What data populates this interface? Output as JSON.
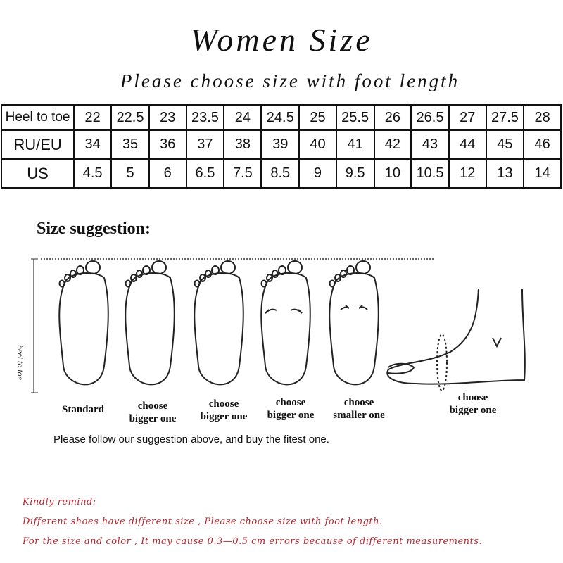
{
  "title": "Women Size",
  "subtitle": "Please choose size with foot length",
  "size_table": {
    "rows": [
      {
        "label": "Heel to toe",
        "values": [
          "22",
          "22.5",
          "23",
          "23.5",
          "24",
          "24.5",
          "25",
          "25.5",
          "26",
          "26.5",
          "27",
          "27.5",
          "28"
        ]
      },
      {
        "label": "RU/EU",
        "values": [
          "34",
          "35",
          "36",
          "37",
          "38",
          "39",
          "40",
          "41",
          "42",
          "43",
          "44",
          "45",
          "46"
        ]
      },
      {
        "label": "US",
        "values": [
          "4.5",
          "5",
          "6",
          "6.5",
          "7.5",
          "8.5",
          "9",
          "9.5",
          "10",
          "10.5",
          "12",
          "13",
          "14"
        ]
      }
    ]
  },
  "suggestion": {
    "heading": "Size suggestion:",
    "axis_label": "heel to toe",
    "feet": [
      {
        "line1": "Standard",
        "line2": ""
      },
      {
        "line1": "choose",
        "line2": "bigger one"
      },
      {
        "line1": "choose",
        "line2": "bigger one"
      },
      {
        "line1": "choose",
        "line2": "bigger one"
      },
      {
        "line1": "choose",
        "line2": "smaller one"
      },
      {
        "line1": "choose",
        "line2": "bigger one"
      }
    ],
    "note": "Please follow our suggestion above, and buy the fitest one."
  },
  "remind": {
    "heading": "Kindly remind:",
    "line1": "Different shoes have different size , Please choose size with foot length.",
    "line2": "For the size and color , It may cause 0.3—0.5 cm errors because of different measurements."
  },
  "colors": {
    "remind_text": "#b5262f"
  }
}
